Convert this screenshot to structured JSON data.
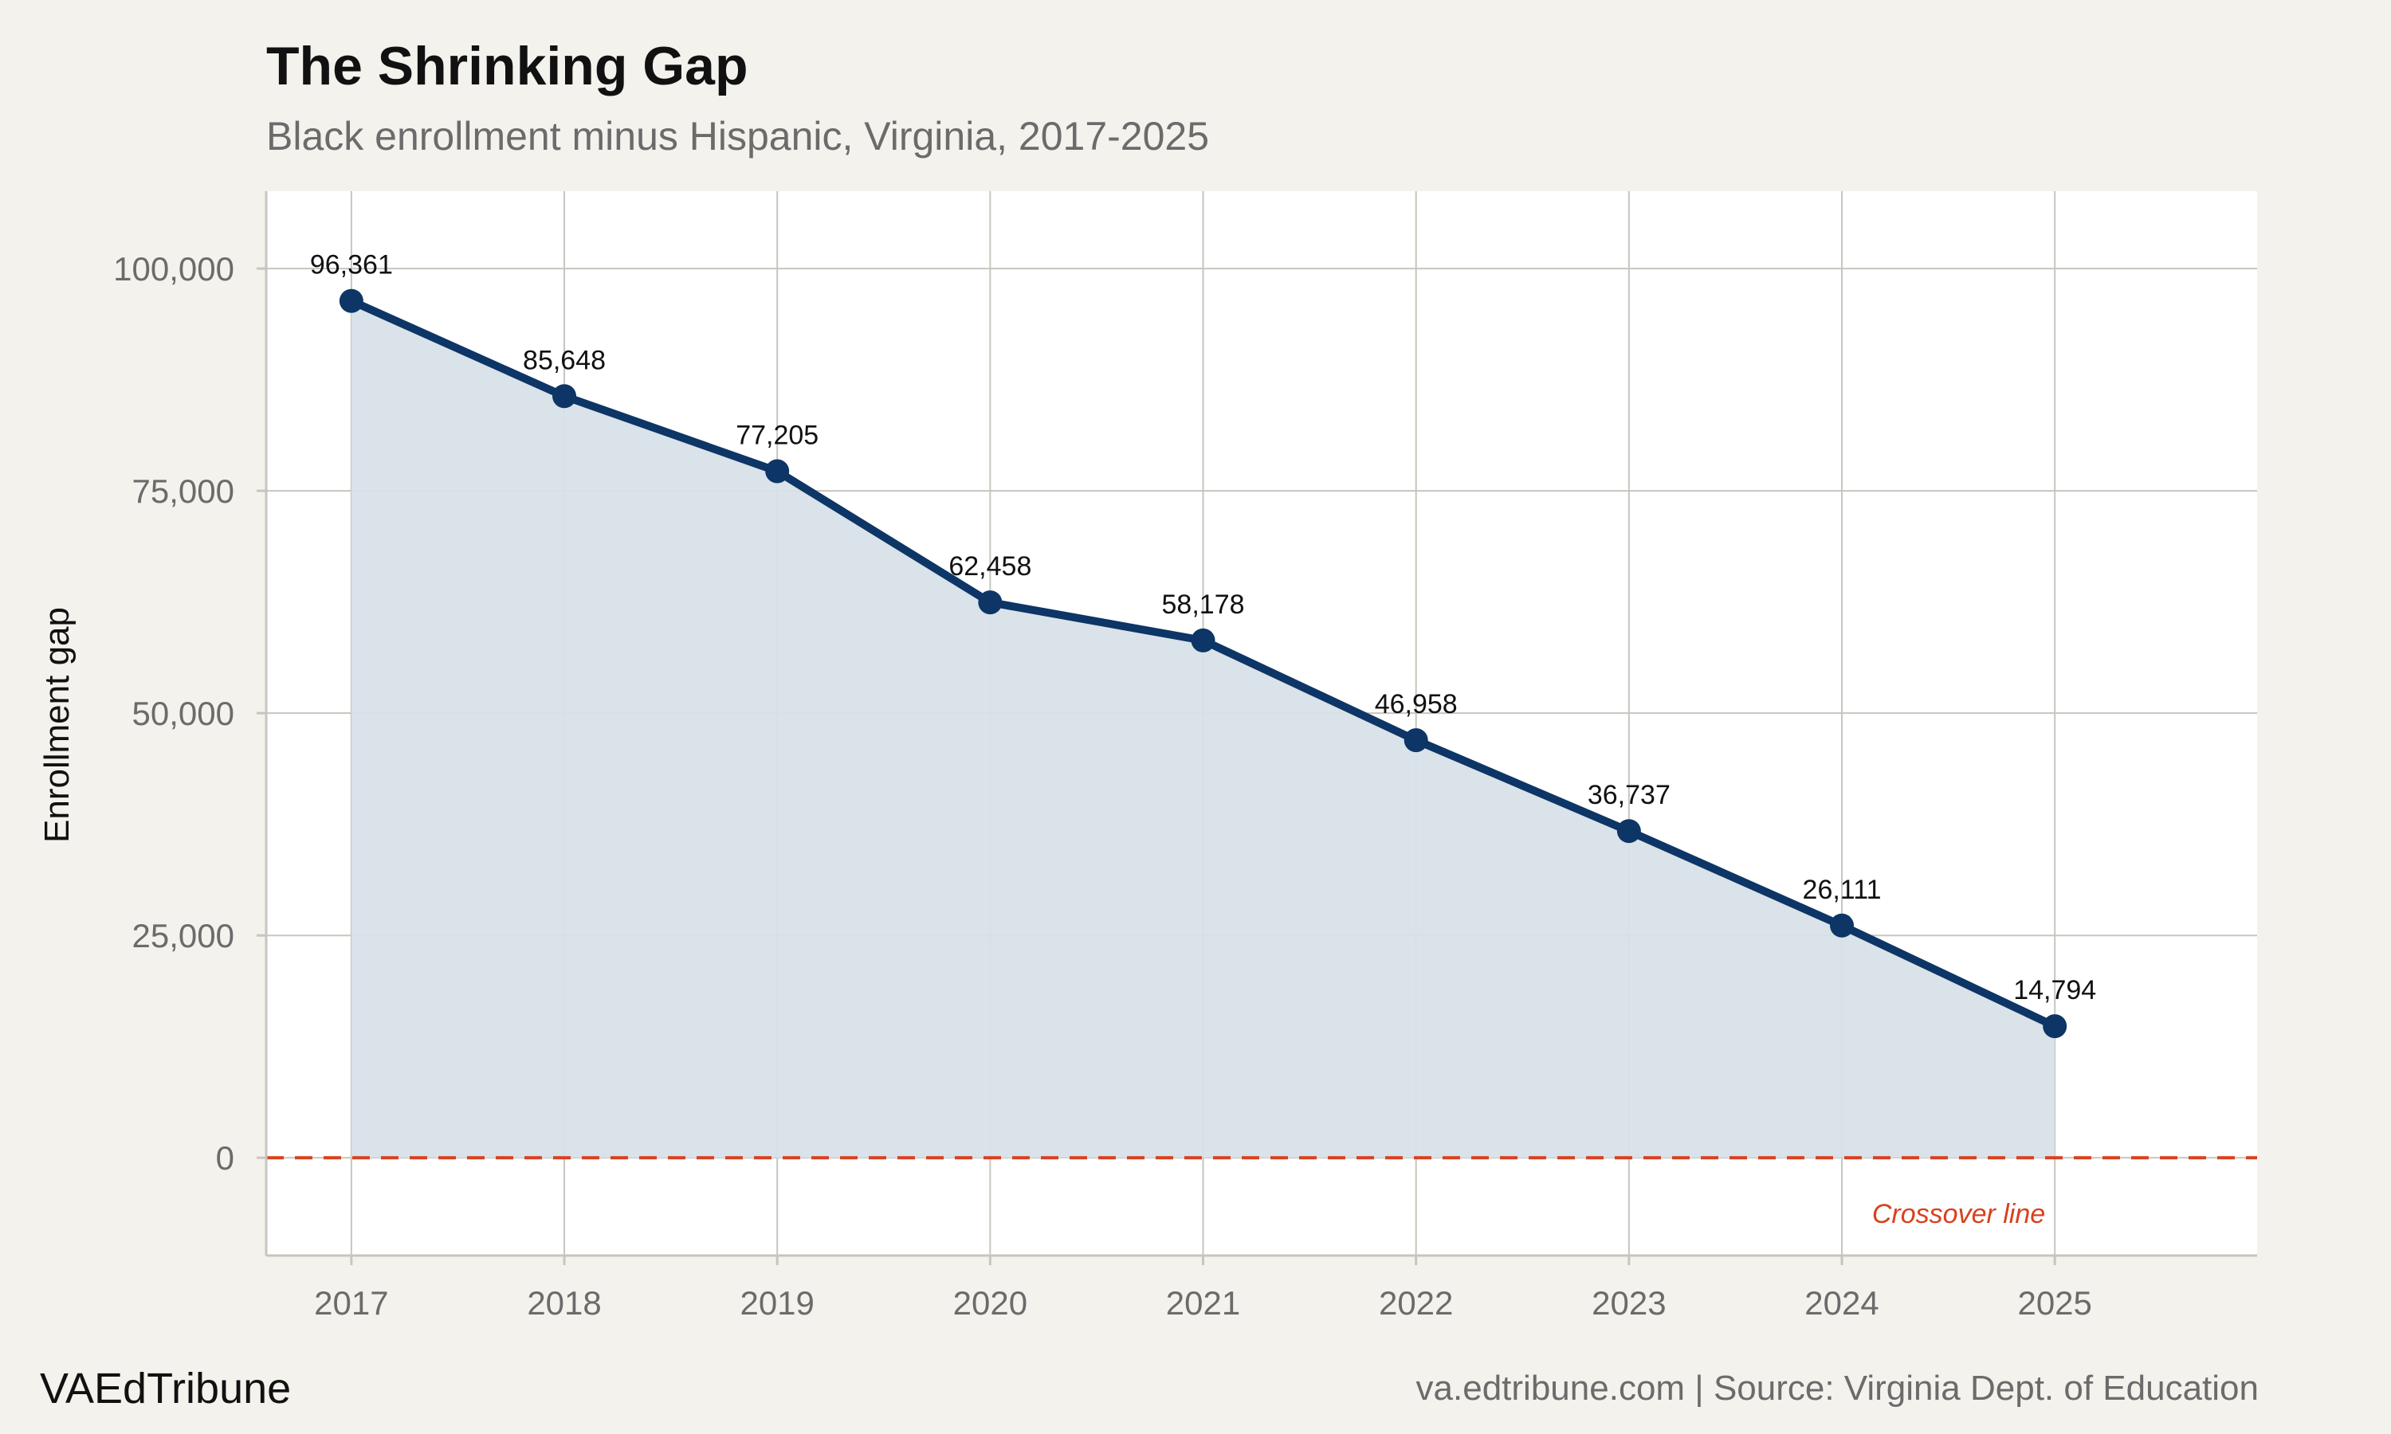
{
  "header": {
    "title": "The Shrinking Gap",
    "subtitle": "Black enrollment minus Hispanic, Virginia, 2017-2025"
  },
  "footer": {
    "brand": "VAEdTribune",
    "source": "va.edtribune.com | Source: Virginia Dept. of Education"
  },
  "chart_data": {
    "type": "line",
    "title": "The Shrinking Gap",
    "subtitle": "Black enrollment minus Hispanic, Virginia, 2017-2025",
    "xlabel": "",
    "ylabel": "Enrollment gap",
    "x": [
      2017,
      2018,
      2019,
      2020,
      2021,
      2022,
      2023,
      2024,
      2025
    ],
    "x_tick_labels": [
      "2017",
      "2018",
      "2019",
      "2020",
      "2021",
      "2022",
      "2023",
      "2024",
      "2025"
    ],
    "values": [
      96361,
      85648,
      77205,
      62458,
      58178,
      46958,
      36737,
      26111,
      14794
    ],
    "data_labels": [
      "96,361",
      "85,648",
      "77,205",
      "62,458",
      "58,178",
      "46,958",
      "36,737",
      "26,111",
      "14,794"
    ],
    "y_ticks": [
      0,
      25000,
      50000,
      75000,
      100000
    ],
    "y_tick_labels": [
      "0",
      "25,000",
      "50,000",
      "75,000",
      "100,000"
    ],
    "xlim": [
      2016.6,
      2025.95
    ],
    "ylim": [
      -11000,
      108700
    ],
    "grid": true,
    "area_fill": true,
    "reference_line": {
      "y": 0,
      "label": "Crossover line",
      "style": "dashed"
    },
    "colors": {
      "line": "#0d3566",
      "area": "#d8e0e9",
      "reference": "#d9401e",
      "grid": "#c7c5bd",
      "panel": "#ffffff",
      "background": "#f4f2ed"
    }
  }
}
